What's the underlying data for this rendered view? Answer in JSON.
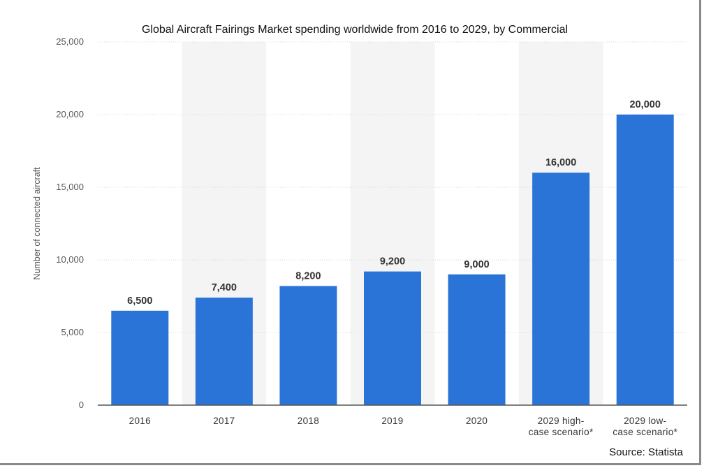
{
  "chart_data": {
    "type": "bar",
    "title": "Global Aircraft Fairings Market spending worldwide from 2016 to 2029, by Commercial",
    "xlabel": "",
    "ylabel": "Number of connected aircraft",
    "categories": [
      [
        "2016"
      ],
      [
        "2017"
      ],
      [
        "2018"
      ],
      [
        "2019"
      ],
      [
        "2020"
      ],
      [
        "2029 high-",
        "case scenario*"
      ],
      [
        "2029 low-",
        "case scenario*"
      ]
    ],
    "values": [
      6500,
      7400,
      8200,
      9200,
      9000,
      16000,
      20000
    ],
    "data_labels": [
      "6,500",
      "7,400",
      "8,200",
      "9,200",
      "9,000",
      "16,000",
      "20,000"
    ],
    "y_ticks": [
      "0",
      "5,000",
      "10,000",
      "15,000",
      "20,000",
      "25,000"
    ],
    "ylim": [
      0,
      25000
    ],
    "grid": true,
    "bar_color": "#2a74d8",
    "band_color": "#f4f4f4",
    "grid_color": "#d9d9d9",
    "source": "Source: Statista"
  }
}
